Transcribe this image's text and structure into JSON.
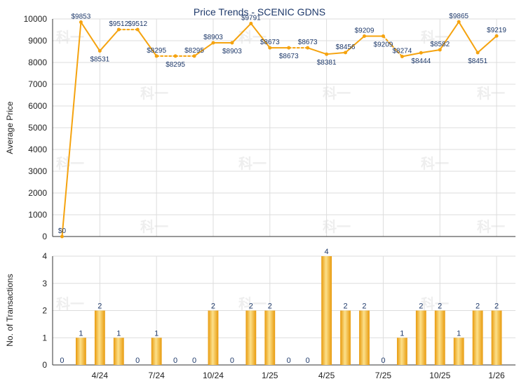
{
  "colors": {
    "line": "#F5A30F",
    "bar_light": "#FCE08A",
    "bar_dark": "#E89A0C",
    "grid": "#dddddd",
    "axis": "#333333",
    "label": "#1f3a6b"
  },
  "chart_data": [
    {
      "type": "line",
      "title": "Price Trends - SCENIC GDNS",
      "ylabel": "Average Price",
      "ylim": [
        0,
        10000
      ],
      "yticks": [
        0,
        1000,
        2000,
        3000,
        4000,
        5000,
        6000,
        7000,
        8000,
        9000,
        10000
      ],
      "grid": true,
      "n_points": 24,
      "values": [
        0,
        9853,
        8531,
        9512,
        9512,
        8295,
        8295,
        8295,
        8903,
        8903,
        9791,
        8673,
        8673,
        8673,
        8381,
        8456,
        9209,
        9209,
        8274,
        8444,
        8582,
        9865,
        8451,
        9219
      ],
      "value_labels": [
        "$0",
        "$9853",
        "$8531",
        "$9512",
        "$9512",
        "$8295",
        "$8295",
        "$8295",
        "$8903",
        "$8903",
        "$9791",
        "$8673",
        "$8673",
        "$8673",
        "$8381",
        "$8456",
        "$9209",
        "$9209",
        "$8274",
        "$8444",
        "$8582",
        "$9865",
        "$8451",
        "$9219"
      ],
      "dashed_segments": [
        3,
        5,
        6,
        12,
        17
      ]
    },
    {
      "type": "bar",
      "ylabel": "No. of Transactions",
      "ylim": [
        0,
        4
      ],
      "yticks": [
        0,
        1,
        2,
        3,
        4
      ],
      "grid": true,
      "values": [
        0,
        1,
        2,
        1,
        0,
        1,
        0,
        0,
        2,
        0,
        2,
        2,
        0,
        0,
        4,
        2,
        2,
        0,
        1,
        2,
        2,
        1,
        2,
        2
      ],
      "value_labels": [
        "0",
        "1",
        "2",
        "1",
        "0",
        "1",
        "0",
        "0",
        "2",
        "0",
        "2",
        "2",
        "0",
        "0",
        "4",
        "2",
        "2",
        "0",
        "1",
        "2",
        "2",
        "1",
        "2",
        "2"
      ]
    }
  ],
  "x_ticks": [
    {
      "index": 2,
      "label": "4/24"
    },
    {
      "index": 5,
      "label": "7/24"
    },
    {
      "index": 8,
      "label": "10/24"
    },
    {
      "index": 11,
      "label": "1/25"
    },
    {
      "index": 14,
      "label": "4/25"
    },
    {
      "index": 17,
      "label": "7/25"
    },
    {
      "index": 20,
      "label": "10/25"
    },
    {
      "index": 23,
      "label": "1/26"
    }
  ],
  "watermark": "科一"
}
